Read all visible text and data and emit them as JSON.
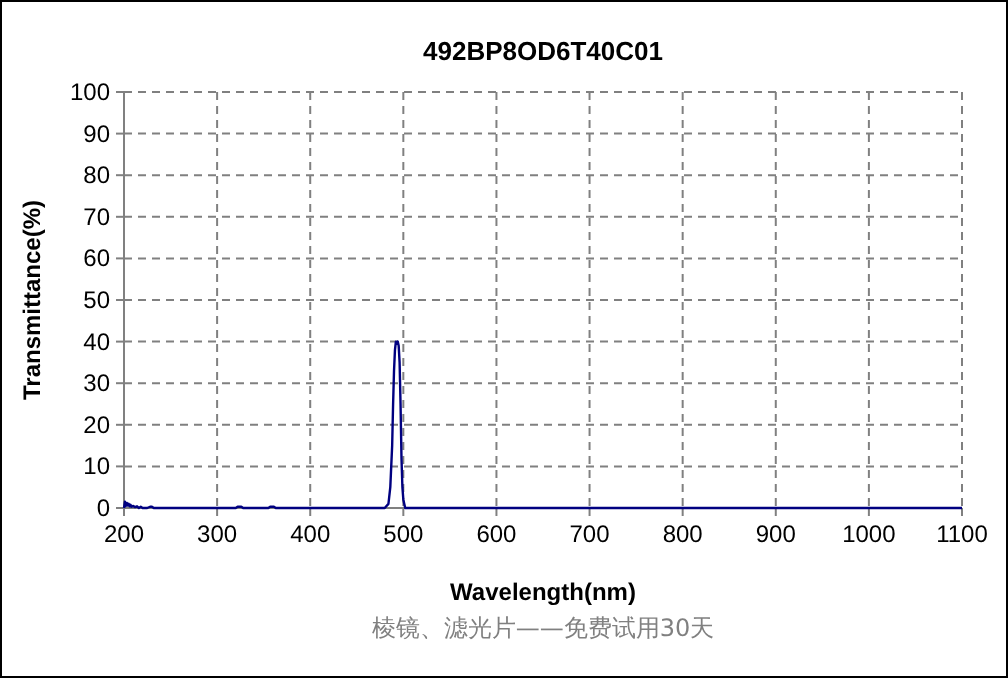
{
  "chart_data": {
    "type": "line",
    "title": "492BP8OD6T40C01",
    "xlabel": "Wavelength(nm)",
    "ylabel": "Transmittance(%)",
    "annotations": [
      "棱镜、滤光片——免费试用30天"
    ],
    "xlim": [
      200,
      1100
    ],
    "ylim": [
      0,
      100
    ],
    "xticks": [
      200,
      300,
      400,
      500,
      600,
      700,
      800,
      900,
      1000,
      1100
    ],
    "yticks": [
      0,
      10,
      20,
      30,
      40,
      50,
      60,
      70,
      80,
      90,
      100
    ],
    "grid": true,
    "marker": "none",
    "line_style": "solid",
    "series": [
      {
        "color": "#000080",
        "x": [
          200,
          201,
          202,
          203,
          204,
          205,
          206,
          207,
          208,
          210,
          212,
          214,
          216,
          218,
          220,
          225,
          228,
          230,
          232,
          235,
          300,
          320,
          322,
          326,
          328,
          355,
          357,
          361,
          363,
          400,
          470,
          480,
          484,
          486,
          488,
          489,
          490,
          491,
          492,
          493,
          494,
          495,
          496,
          497,
          498,
          499,
          500,
          502,
          505,
          600,
          800,
          1100
        ],
        "values": [
          0,
          1.5,
          0.5,
          1.2,
          0.6,
          1.0,
          0.4,
          0.8,
          0.3,
          0.5,
          0.2,
          0.4,
          0,
          0.3,
          0,
          0,
          0.3,
          0.3,
          0,
          0,
          0,
          0,
          0.3,
          0.3,
          0,
          0,
          0.3,
          0.3,
          0,
          0,
          0,
          0,
          1,
          5,
          15,
          25,
          33,
          38,
          40,
          39.5,
          40,
          39,
          35,
          25,
          12,
          5,
          2,
          0,
          0,
          0,
          0,
          0
        ]
      }
    ]
  }
}
